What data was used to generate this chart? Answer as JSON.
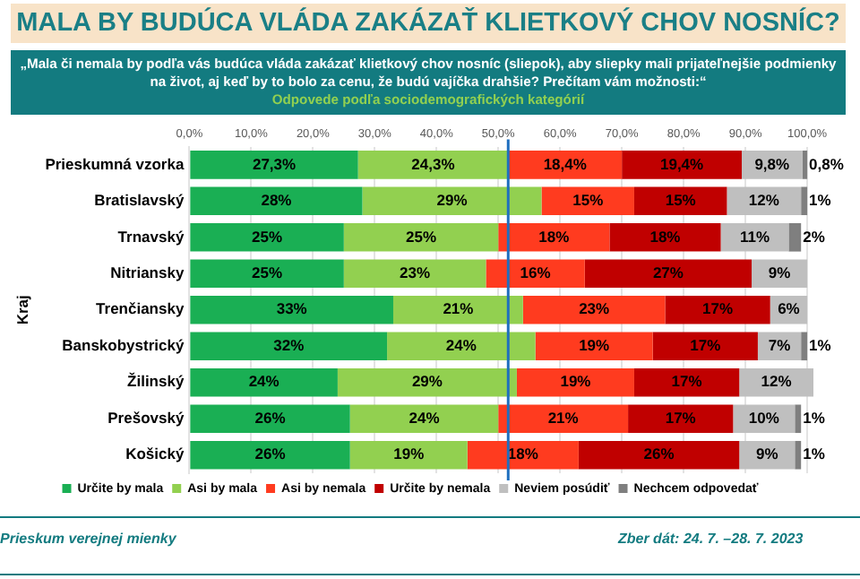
{
  "chart_data": {
    "type": "bar",
    "orientation": "horizontal",
    "stacked": true,
    "title": "MALA BY BUDÚCA VLÁDA ZAKÁZAŤ KLIETKOVÝ CHOV NOSNÍC?",
    "subtitle": "„Mala či nemala by podľa vás budúca vláda zakázať klietkový chov nosníc (sliepok), aby sliepky mali prijateľnejšie podmienky na život, aj keď by to bolo za cenu, že budú vajíčka drahšie? Prečítam vám možnosti:“",
    "ylabel": "Kraj",
    "annotations": [
      "Odpovede podľa sociodemografických kategórií",
      "Prieskum verejnej mienky",
      "Zber dát: 24. 7. –28. 7. 2023"
    ],
    "categories": [
      "Prieskumná vzorka",
      "Bratislavský",
      "Trnavský",
      "Nitriansky",
      "Trenčiansky",
      "Banskobystrický",
      "Žilinský",
      "Prešovský",
      "Košický"
    ],
    "series": [
      {
        "name": "Určite by mala",
        "color": "#1aaf54",
        "values": [
          27.3,
          28,
          25,
          25,
          33,
          32,
          24,
          26,
          26
        ],
        "value_labels": [
          "27,3%",
          "28%",
          "25%",
          "25%",
          "33%",
          "32%",
          "24%",
          "26%",
          "26%"
        ]
      },
      {
        "name": "Asi by mala",
        "color": "#92d050",
        "values": [
          24.3,
          29,
          25,
          23,
          21,
          24,
          29,
          24,
          19
        ],
        "value_labels": [
          "24,3%",
          "29%",
          "25%",
          "23%",
          "21%",
          "24%",
          "29%",
          "24%",
          "19%"
        ]
      },
      {
        "name": "Asi by nemala",
        "color": "#ff3b1f",
        "values": [
          18.4,
          15,
          18,
          16,
          23,
          19,
          19,
          21,
          18
        ],
        "value_labels": [
          "18,4%",
          "15%",
          "18%",
          "16%",
          "23%",
          "19%",
          "19%",
          "21%",
          "18%"
        ]
      },
      {
        "name": "Určite by nemala",
        "color": "#c00000",
        "values": [
          19.4,
          15,
          18,
          27,
          17,
          17,
          17,
          17,
          26
        ],
        "value_labels": [
          "19,4%",
          "15%",
          "18%",
          "27%",
          "17%",
          "17%",
          "17%",
          "17%",
          "26%"
        ]
      },
      {
        "name": "Neviem posúdiť",
        "color": "#bfbfbf",
        "values": [
          9.8,
          12,
          11,
          9,
          6,
          7,
          12,
          10,
          9
        ],
        "value_labels": [
          "9,8%",
          "12%",
          "11%",
          "9%",
          "6%",
          "7%",
          "12%",
          "10%",
          "9%"
        ]
      },
      {
        "name": "Nechcem odpovedať",
        "color": "#7f7f7f",
        "values": [
          0.8,
          1,
          2,
          null,
          null,
          1,
          null,
          1,
          1
        ],
        "value_labels": [
          "0,8%",
          "1%",
          "2%",
          null,
          null,
          "1%",
          null,
          "1%",
          "1%"
        ]
      }
    ],
    "xlim": [
      0,
      101
    ],
    "xticks": [
      {
        "value": 0,
        "label": "0,0%"
      },
      {
        "value": 10,
        "label": "10,0%"
      },
      {
        "value": 20,
        "label": "20,0%"
      },
      {
        "value": 30,
        "label": "30,0%"
      },
      {
        "value": 40,
        "label": "40,0%"
      },
      {
        "value": 50,
        "label": "50,0%"
      },
      {
        "value": 60,
        "label": "60,0%"
      },
      {
        "value": 70,
        "label": "70,0%"
      },
      {
        "value": 80,
        "label": "80,0%"
      },
      {
        "value": 90,
        "label": "90,0%"
      },
      {
        "value": 100,
        "label": "100,0%"
      }
    ],
    "ref_lines": [
      {
        "axis": "x",
        "value": 51.6,
        "color": "#1f6fbf"
      }
    ],
    "grid": "x",
    "legend": "bottom"
  }
}
